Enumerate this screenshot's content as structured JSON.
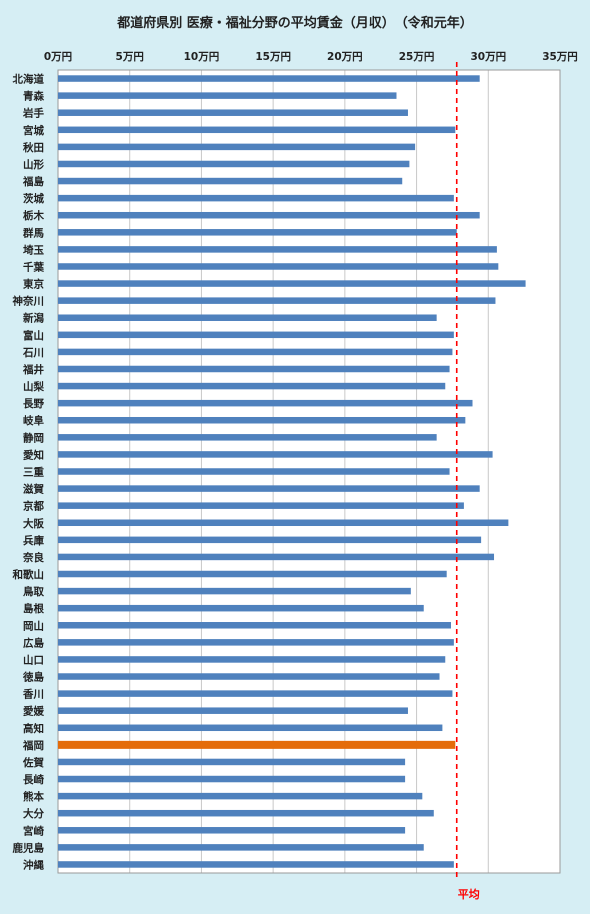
{
  "chart_data": {
    "type": "bar",
    "orientation": "horizontal",
    "title": "都道府県別 医療・福祉分野の平均賃金（月収）　（令和元年）",
    "xlim": [
      0,
      35
    ],
    "x_ticks": [
      "0万円",
      "5万円",
      "10万円",
      "15万円",
      "20万円",
      "25万円",
      "30万円",
      "35万円"
    ],
    "x_tick_values": [
      0,
      5,
      10,
      15,
      20,
      25,
      30,
      35
    ],
    "grid": "vertical",
    "categories": [
      "北海道",
      "青森",
      "岩手",
      "宮城",
      "秋田",
      "山形",
      "福島",
      "茨城",
      "栃木",
      "群馬",
      "埼玉",
      "千葉",
      "東京",
      "神奈川",
      "新潟",
      "富山",
      "石川",
      "福井",
      "山梨",
      "長野",
      "岐阜",
      "静岡",
      "愛知",
      "三重",
      "滋賀",
      "京都",
      "大阪",
      "兵庫",
      "奈良",
      "和歌山",
      "鳥取",
      "島根",
      "岡山",
      "広島",
      "山口",
      "徳島",
      "香川",
      "愛媛",
      "高知",
      "福岡",
      "佐賀",
      "長崎",
      "熊本",
      "大分",
      "宮崎",
      "鹿児島",
      "沖縄"
    ],
    "values": [
      29.4,
      23.6,
      24.4,
      27.7,
      24.9,
      24.5,
      24.0,
      27.6,
      29.4,
      27.8,
      30.6,
      30.7,
      32.6,
      30.5,
      26.4,
      27.6,
      27.5,
      27.3,
      27.0,
      28.9,
      28.4,
      26.4,
      30.3,
      27.3,
      29.4,
      28.3,
      31.4,
      29.5,
      30.4,
      27.1,
      24.6,
      25.5,
      27.4,
      27.6,
      27.0,
      26.6,
      27.5,
      24.4,
      26.8,
      27.7,
      24.2,
      24.2,
      25.4,
      26.2,
      24.2,
      25.5,
      27.6
    ],
    "highlight_category": "福岡",
    "bar_color": "#4f81bd",
    "highlight_color": "#e46c0a",
    "average": {
      "label": "平均",
      "value": 27.8,
      "color": "#ff0000"
    }
  }
}
